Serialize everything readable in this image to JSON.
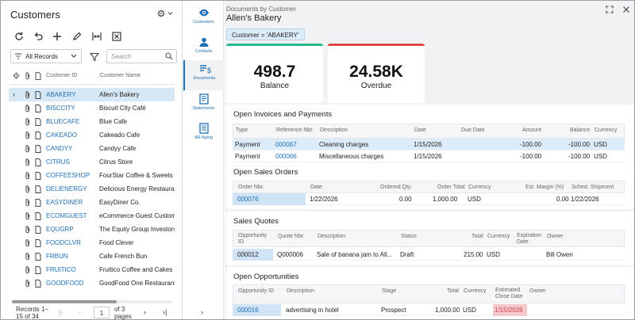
{
  "left": {
    "title": "Customers",
    "filter_value": "All Records",
    "search_placeholder": "Search",
    "columns": {
      "customer_id": "Customer ID",
      "customer_name": "Customer Name"
    },
    "rows": [
      {
        "id": "ABAKERY",
        "name": "Allen's Bakery",
        "selected": true
      },
      {
        "id": "BISCCITY",
        "name": "Biscuit City Café"
      },
      {
        "id": "BLUECAFE",
        "name": "Blue Cafe"
      },
      {
        "id": "CAKEADO",
        "name": "Cakeado Cafe"
      },
      {
        "id": "CANDYY",
        "name": "Candyy Cafe"
      },
      {
        "id": "CITRUS",
        "name": "Citrus Store"
      },
      {
        "id": "COFFEESHOP",
        "name": "FourStar Coffee & Sweets S"
      },
      {
        "id": "DELIENERGY",
        "name": "Delicious Energy Restaurar"
      },
      {
        "id": "EASYDINER",
        "name": "EasyDiner Co."
      },
      {
        "id": "ECOMGUEST",
        "name": "eCommerce Guest Custom"
      },
      {
        "id": "EQUGRP",
        "name": "The Equity Group Investors"
      },
      {
        "id": "FOODCLVR",
        "name": "Food Clever"
      },
      {
        "id": "FRBUN",
        "name": "Cafe French Bun"
      },
      {
        "id": "FRUITICO",
        "name": "Fruitico Coffee and Cakes"
      },
      {
        "id": "GOODFOOD",
        "name": "GoodFood One Restaurant"
      }
    ],
    "pager": {
      "records_line1": "Records 1–",
      "records_line2": "15 of 34",
      "page": "1",
      "of_line1": "of 3",
      "of_line2": "pages"
    }
  },
  "rail": {
    "items": [
      {
        "label": "Customers",
        "icon": "eye-icon"
      },
      {
        "label": "Contacts",
        "icon": "person-icon"
      },
      {
        "label": "Documents",
        "icon": "documents-icon",
        "active": true
      },
      {
        "label": "Statements",
        "icon": "statements-icon"
      },
      {
        "label": "AR Aging",
        "icon": "aging-icon"
      }
    ]
  },
  "right": {
    "breadcrumb": "Documents by Customer",
    "title": "Allen's Bakery",
    "filter_chip": "Customer = 'ABAKERY'",
    "kpis": [
      {
        "value": "498.7",
        "label": "Balance",
        "color": "#28b78a"
      },
      {
        "value": "24.58K",
        "label": "Overdue",
        "color": "#e04848"
      }
    ],
    "invoices": {
      "title": "Open Invoices and Payments",
      "headers": {
        "type": "Type",
        "ref": "Reference Nbr.",
        "desc": "Description",
        "date": "Date",
        "due": "Due Date",
        "amount": "Amount",
        "balance": "Balance",
        "currency": "Currency"
      },
      "rows": [
        {
          "type": "Payment",
          "ref": "000067",
          "desc": "Cleaning charges",
          "date": "1/15/2026",
          "due": "",
          "amount": "-100.00",
          "balance": "-100.00",
          "currency": "USD"
        },
        {
          "type": "Payment",
          "ref": "000066",
          "desc": "Miscellaneous charges",
          "date": "1/15/2026",
          "due": "",
          "amount": "-100.00",
          "balance": "-100.00",
          "currency": "USD"
        }
      ]
    },
    "orders": {
      "title": "Open Sales Orders",
      "headers": {
        "order": "Order Nbr.",
        "date": "Date",
        "qty": "Ordered Qty.",
        "total": "Order Total",
        "currency": "Currency",
        "margin": "Est. Margin (%)",
        "ship": "Sched. Shipment"
      },
      "rows": [
        {
          "order": "000076",
          "date": "1/22/2026",
          "qty": "0.00",
          "total": "1,000.00",
          "currency": "USD",
          "margin": "0.00",
          "ship": "1/22/2026"
        }
      ]
    },
    "quotes": {
      "title": "Sales Quotes",
      "headers": {
        "opp1": "Opportunity",
        "opp2": "ID",
        "quote": "Quote Nbr.",
        "desc": "Description",
        "status": "Status",
        "total": "Total",
        "currency": "Currency",
        "exp1": "Expiration",
        "exp2": "Date",
        "owner": "Owner"
      },
      "rows": [
        {
          "opp": "000012",
          "quote": "Q000006",
          "desc": "Sale of banana jam to All...",
          "status": "Draft",
          "total": "215.00",
          "currency": "USD",
          "exp": "",
          "owner": "Bill Owen"
        }
      ]
    },
    "opportunities": {
      "title": "Open Opportunities",
      "headers": {
        "opp": "Opportunity ID",
        "desc": "Description",
        "stage": "Stage",
        "total": "Total",
        "currency": "Currency",
        "est1": "Estimated",
        "est2": "Close Date",
        "owner": "Owner"
      },
      "rows": [
        {
          "opp": "000016",
          "desc": "advertising in hotel",
          "stage": "Prospect",
          "total": "1,000.00",
          "currency": "USD",
          "close": "1/15/2026",
          "owner": ""
        }
      ]
    }
  }
}
